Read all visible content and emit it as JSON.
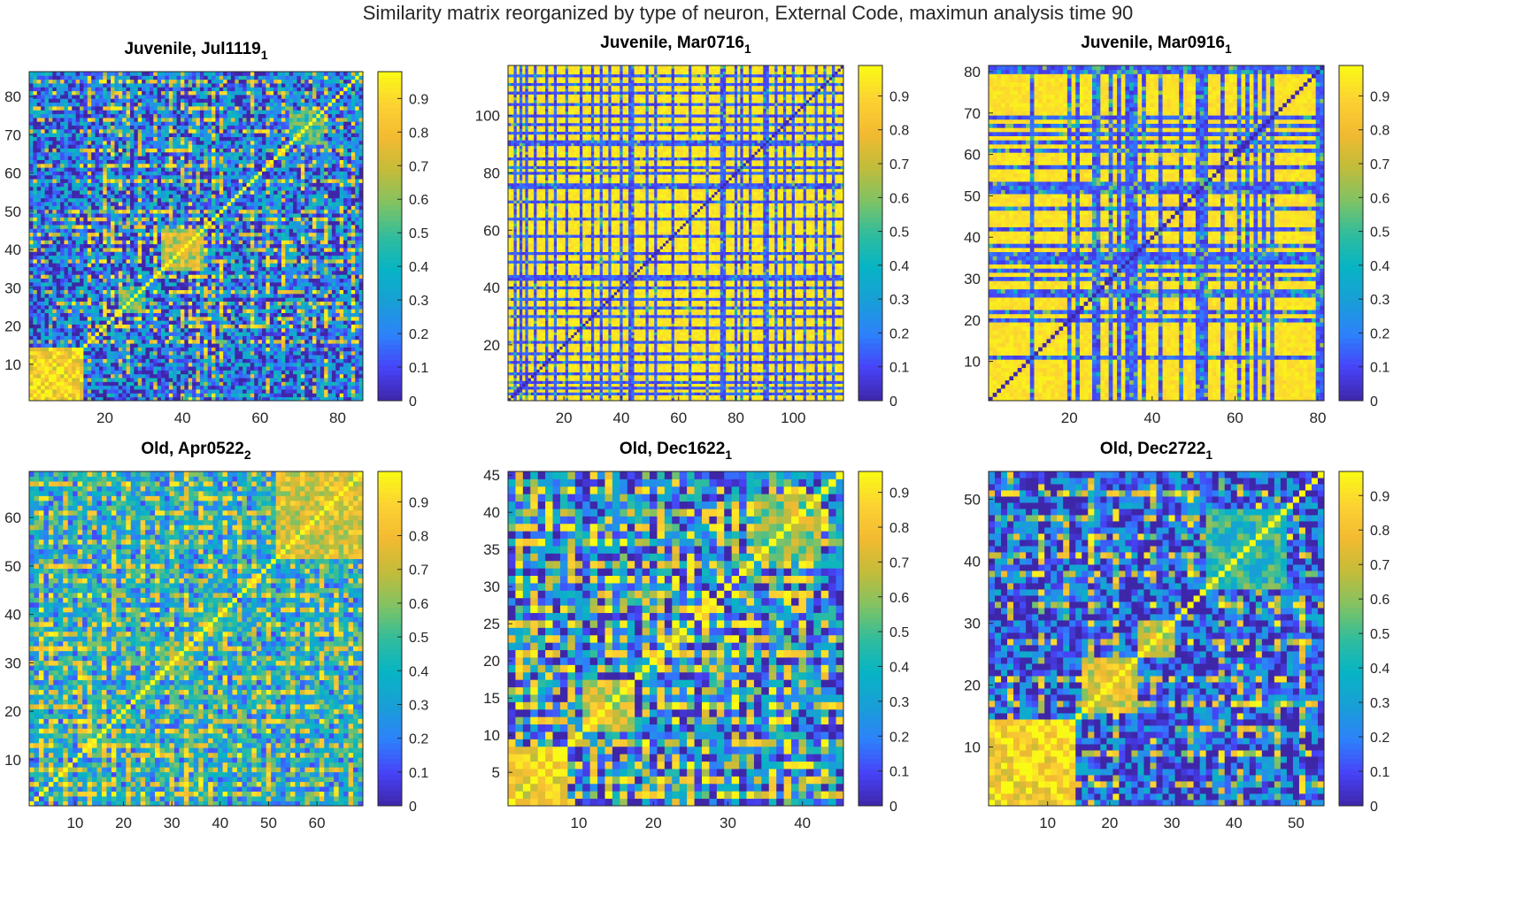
{
  "figure": {
    "title": "Similarity matrix reorganized by type of neuron, External Code, maximun analysis time 90"
  },
  "colormap": [
    "#3e26a8",
    "#4743f8",
    "#2d82fb",
    "#199fd6",
    "#07b4c5",
    "#31bd9d",
    "#81c263",
    "#c3bc3a",
    "#f2ba31",
    "#fcd233",
    "#f9fb15"
  ],
  "chart_data": [
    {
      "type": "heatmap",
      "title": "Juvenile, Jul1119",
      "title_subscript": "1",
      "n": 86,
      "xticks": [
        20,
        40,
        60,
        80
      ],
      "yticks": [
        10,
        20,
        30,
        40,
        50,
        60,
        70,
        80
      ],
      "colorbar": {
        "min": 0,
        "max": 0.98,
        "ticks": [
          "0",
          "0.1",
          "0.2",
          "0.3",
          "0.4",
          "0.5",
          "0.6",
          "0.7",
          "0.8",
          "0.9"
        ]
      },
      "pattern": {
        "base": 0.18,
        "noise": 0.55,
        "blocks": [
          [
            1,
            14,
            0.85
          ],
          [
            35,
            45,
            0.7
          ],
          [
            24,
            30,
            0.55
          ],
          [
            68,
            76,
            0.5
          ]
        ],
        "lowLines": [],
        "highLines": [
          16,
          20,
          22,
          24,
          26,
          29,
          33,
          37,
          40,
          42,
          44,
          46,
          48,
          50,
          58,
          62,
          66,
          71,
          74,
          77,
          81,
          84
        ],
        "lineProb": 0.35
      }
    },
    {
      "type": "heatmap",
      "title": "Juvenile, Mar0716",
      "title_subscript": "1",
      "n": 117,
      "xticks": [
        20,
        40,
        60,
        80,
        100
      ],
      "yticks": [
        20,
        40,
        60,
        80,
        100
      ],
      "colorbar": {
        "min": 0,
        "max": 0.99,
        "ticks": [
          "0",
          "0.1",
          "0.2",
          "0.3",
          "0.4",
          "0.5",
          "0.6",
          "0.7",
          "0.8",
          "0.9"
        ]
      },
      "pattern": {
        "base": 0.94,
        "noise": 0.08,
        "blocks": [],
        "highLines": [],
        "lowLines": [
          3,
          5,
          7,
          10,
          14,
          17,
          21,
          26,
          30,
          33,
          36,
          40,
          43,
          44,
          49,
          52,
          58,
          64,
          70,
          75,
          76,
          80,
          82,
          85,
          90,
          91,
          94,
          97,
          100,
          104,
          108,
          111,
          114
        ],
        "lineProb": 0.9
      }
    },
    {
      "type": "heatmap",
      "title": "Juvenile, Mar0916",
      "title_subscript": "1",
      "n": 81,
      "xticks": [
        20,
        40,
        60,
        80
      ],
      "yticks": [
        10,
        20,
        30,
        40,
        50,
        60,
        70,
        80
      ],
      "colorbar": {
        "min": 0,
        "max": 0.99,
        "ticks": [
          "0",
          "0.1",
          "0.2",
          "0.3",
          "0.4",
          "0.5",
          "0.6",
          "0.7",
          "0.8",
          "0.9"
        ]
      },
      "pattern": {
        "base": 0.93,
        "noise": 0.08,
        "blocks": [],
        "highLines": [],
        "lowLines": [
          11,
          20,
          22,
          26,
          27,
          30,
          32,
          34,
          35,
          36,
          38,
          42,
          47,
          51,
          52,
          53,
          57,
          61,
          63,
          65,
          67,
          69,
          80,
          81
        ],
        "lineProb": 0.8
      }
    },
    {
      "type": "heatmap",
      "title": "Old, Apr0522",
      "title_subscript": "2",
      "n": 69,
      "xticks": [
        10,
        20,
        30,
        40,
        50,
        60
      ],
      "yticks": [
        10,
        20,
        30,
        40,
        50,
        60
      ],
      "colorbar": {
        "min": 0,
        "max": 0.99,
        "ticks": [
          "0",
          "0.1",
          "0.2",
          "0.3",
          "0.4",
          "0.5",
          "0.6",
          "0.7",
          "0.8",
          "0.9"
        ]
      },
      "pattern": {
        "base": 0.35,
        "noise": 0.5,
        "blocks": [
          [
            52,
            69,
            0.75
          ],
          [
            28,
            34,
            0.6
          ]
        ],
        "lowLines": [],
        "highLines": [
          3,
          5,
          8,
          11,
          13,
          16,
          18,
          21,
          24,
          27,
          30,
          33,
          36,
          38,
          41,
          44,
          47,
          50,
          55,
          58,
          61,
          64,
          67
        ],
        "lineProb": 0.4
      }
    },
    {
      "type": "heatmap",
      "title": "Old, Dec1622",
      "title_subscript": "1",
      "n": 45,
      "xticks": [
        10,
        20,
        30,
        40
      ],
      "yticks": [
        5,
        10,
        15,
        20,
        25,
        30,
        35,
        40,
        45
      ],
      "colorbar": {
        "min": 0,
        "max": 0.96,
        "ticks": [
          "0",
          "0.1",
          "0.2",
          "0.3",
          "0.4",
          "0.5",
          "0.6",
          "0.7",
          "0.8",
          "0.9"
        ]
      },
      "pattern": {
        "base": 0.2,
        "noise": 0.55,
        "blocks": [
          [
            1,
            8,
            0.8
          ],
          [
            11,
            17,
            0.7
          ],
          [
            34,
            42,
            0.6
          ]
        ],
        "lowLines": [],
        "highLines": [
          2,
          4,
          6,
          9,
          12,
          14,
          16,
          19,
          21,
          23,
          25,
          27,
          29,
          31,
          33,
          36,
          38,
          40,
          43
        ],
        "lineProb": 0.35
      }
    },
    {
      "type": "heatmap",
      "title": "Old, Dec2722",
      "title_subscript": "1",
      "n": 54,
      "xticks": [
        10,
        20,
        30,
        40,
        50
      ],
      "yticks": [
        10,
        20,
        30,
        40,
        50
      ],
      "colorbar": {
        "min": 0,
        "max": 0.97,
        "ticks": [
          "0",
          "0.1",
          "0.2",
          "0.3",
          "0.4",
          "0.5",
          "0.6",
          "0.7",
          "0.8",
          "0.9"
        ]
      },
      "pattern": {
        "base": 0.12,
        "noise": 0.5,
        "blocks": [
          [
            1,
            14,
            0.85
          ],
          [
            16,
            24,
            0.75
          ],
          [
            25,
            30,
            0.7
          ],
          [
            36,
            48,
            0.45
          ]
        ],
        "lowLines": [],
        "highLines": [
          4,
          9,
          13,
          17,
          21,
          27,
          33,
          38,
          41,
          44,
          47,
          51
        ],
        "lineProb": 0.3
      }
    }
  ]
}
